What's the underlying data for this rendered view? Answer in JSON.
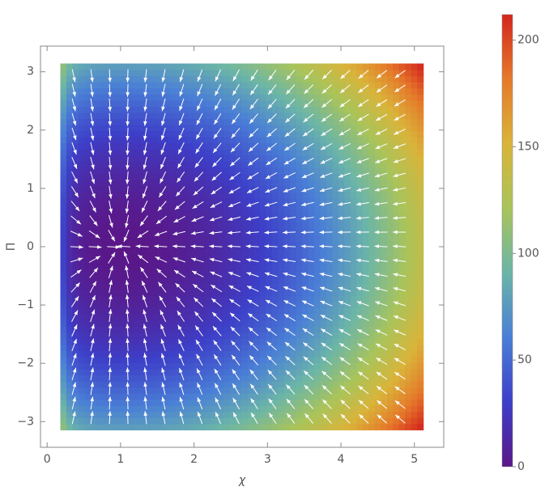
{
  "chart_data": {
    "type": "stream_density",
    "x_label": "χ",
    "y_label": "Π",
    "xlim": [
      -0.09,
      5.4
    ],
    "ylim": [
      -3.44,
      3.44
    ],
    "xticks": [
      0,
      1,
      2,
      3,
      4,
      5
    ],
    "yticks": [
      -3,
      -2,
      -1,
      0,
      1,
      2,
      3
    ],
    "yticklabels": [
      "−3",
      "−2",
      "−1",
      "0",
      "1",
      "2",
      "3"
    ],
    "stream_color": "#ffffff",
    "colorbar": {
      "lim": [
        0,
        212
      ],
      "ticks": [
        0,
        50,
        100,
        150,
        200
      ],
      "colors": [
        "#5a1788",
        "#3d3fc8",
        "#4a7fd6",
        "#6bb5a8",
        "#a9c45a",
        "#d9b43a",
        "#e57a2a",
        "#d4261e"
      ]
    }
  }
}
